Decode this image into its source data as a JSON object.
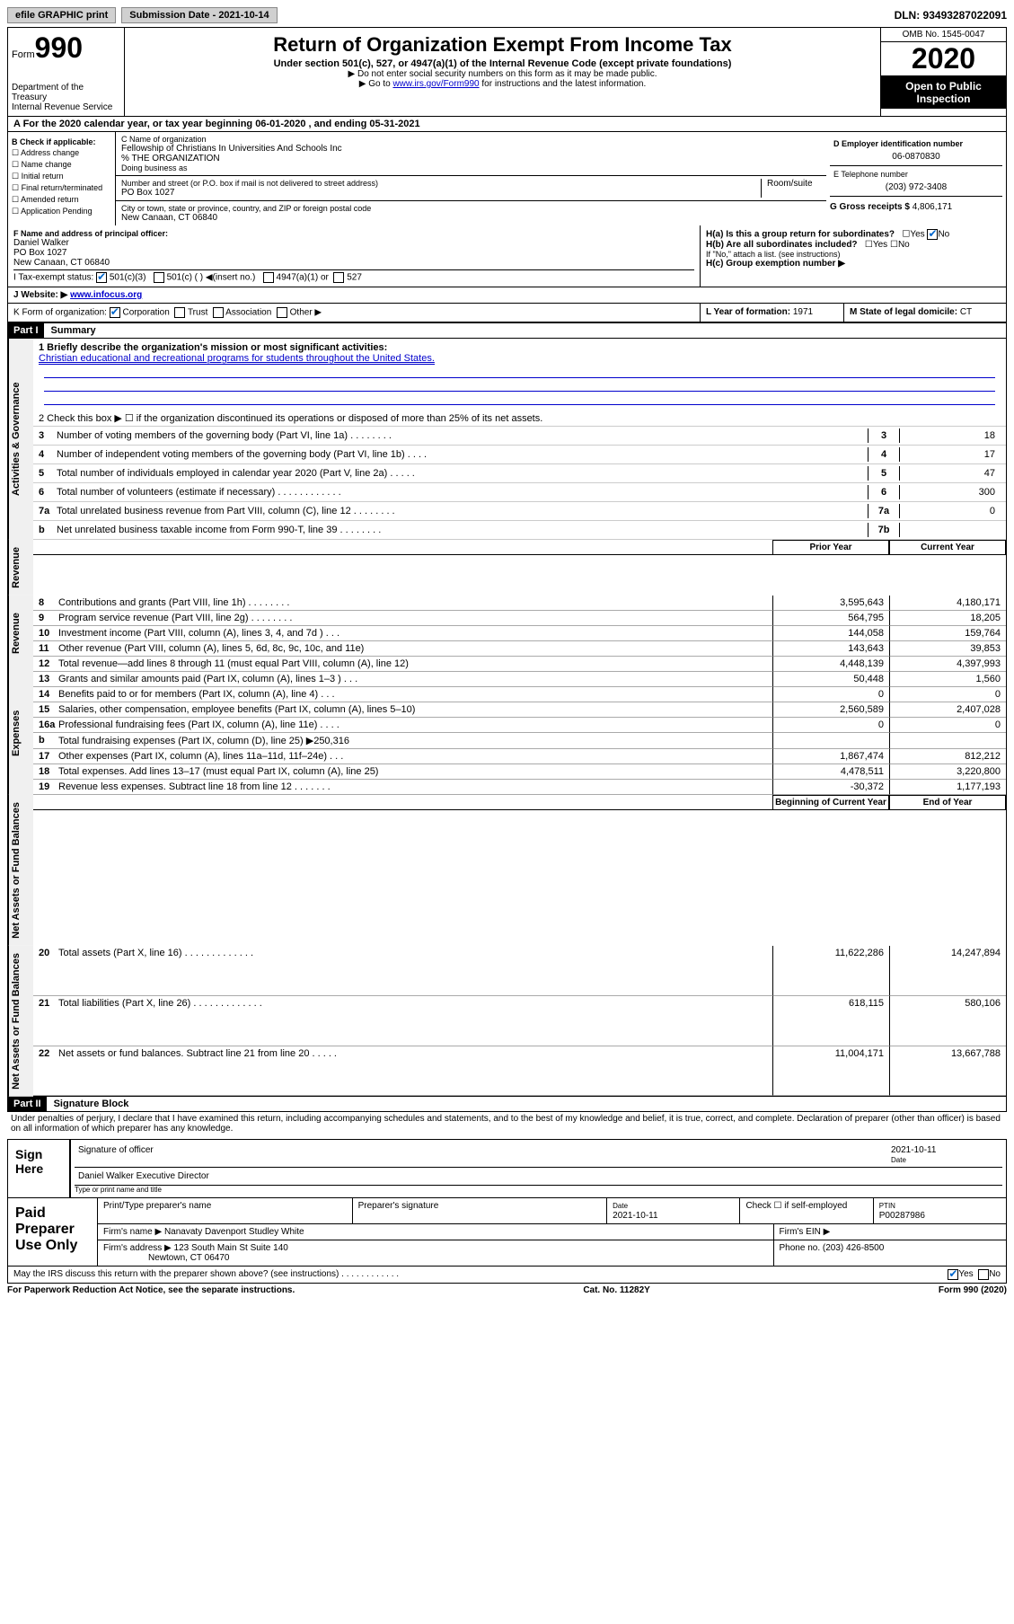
{
  "topbar": {
    "efile": "efile GRAPHIC print",
    "submission": "Submission Date - 2021-10-14",
    "dln": "DLN: 93493287022091"
  },
  "header": {
    "form": "Form",
    "formnum": "990",
    "dept": "Department of the Treasury\nInternal Revenue Service",
    "title": "Return of Organization Exempt From Income Tax",
    "subtitle": "Under section 501(c), 527, or 4947(a)(1) of the Internal Revenue Code (except private foundations)",
    "inst1": "▶ Do not enter social security numbers on this form as it may be made public.",
    "inst2_pre": "▶ Go to ",
    "inst2_link": "www.irs.gov/Form990",
    "inst2_post": " for instructions and the latest information.",
    "omb": "OMB No. 1545-0047",
    "year": "2020",
    "inspection": "Open to Public Inspection"
  },
  "rowA": "A For the 2020 calendar year, or tax year beginning 06-01-2020   , and ending 05-31-2021",
  "boxB": {
    "label": "B Check if applicable:",
    "items": [
      "Address change",
      "Name change",
      "Initial return",
      "Final return/terminated",
      "Amended return",
      "Application Pending"
    ]
  },
  "boxC": {
    "label": "C Name of organization",
    "name": "Fellowship of Christians In Universities And Schools Inc",
    "care": "% THE ORGANIZATION",
    "dba_label": "Doing business as",
    "addr_label": "Number and street (or P.O. box if mail is not delivered to street address)",
    "room": "Room/suite",
    "addr": "PO Box 1027",
    "city_label": "City or town, state or province, country, and ZIP or foreign postal code",
    "city": "New Canaan, CT  06840"
  },
  "boxD": {
    "label": "D Employer identification number",
    "val": "06-0870830"
  },
  "boxE": {
    "label": "E Telephone number",
    "val": "(203) 972-3408"
  },
  "boxG": {
    "label": "G Gross receipts $",
    "val": "4,806,171"
  },
  "boxF": {
    "label": "F Name and address of principal officer:",
    "name": "Daniel Walker",
    "addr": "PO Box 1027",
    "city": "New Canaan, CT  06840"
  },
  "boxH": {
    "ha": "H(a)  Is this a group return for subordinates?",
    "hb": "H(b)  Are all subordinates included?",
    "hb_note": "If \"No,\" attach a list. (see instructions)",
    "hc": "H(c)  Group exemption number ▶",
    "yes": "Yes",
    "no": "No"
  },
  "taxstatus": {
    "label": "I    Tax-exempt status:",
    "c3": "501(c)(3)",
    "c": "501(c) (   ) ◀(insert no.)",
    "a1": "4947(a)(1) or",
    "s527": "527"
  },
  "website": {
    "label": "J   Website: ▶",
    "val": "www.infocus.org"
  },
  "boxK": {
    "label": "K Form of organization:",
    "corp": "Corporation",
    "trust": "Trust",
    "assoc": "Association",
    "other": "Other ▶"
  },
  "boxL": {
    "label": "L Year of formation:",
    "val": "1971"
  },
  "boxM": {
    "label": "M State of legal domicile:",
    "val": "CT"
  },
  "part1": {
    "header": "Part I",
    "title": "Summary",
    "q1_label": "1   Briefly describe the organization's mission or most significant activities:",
    "q1_val": "Christian educational and recreational programs for students throughout the United States.",
    "q2": "2    Check this box ▶ ☐  if the organization discontinued its operations or disposed of more than 25% of its net assets.",
    "gov_label": "Activities & Governance",
    "rev_label": "Revenue",
    "exp_label": "Expenses",
    "nab_label": "Net Assets or Fund Balances",
    "lines_simple": [
      {
        "n": "3",
        "t": "Number of voting members of the governing body (Part VI, line 1a)   .    .    .    .    .    .    .    .",
        "box": "3",
        "v": "18"
      },
      {
        "n": "4",
        "t": "Number of independent voting members of the governing body (Part VI, line 1b)   .    .    .    .",
        "box": "4",
        "v": "17"
      },
      {
        "n": "5",
        "t": "Total number of individuals employed in calendar year 2020 (Part V, line 2a)   .    .    .    .    .",
        "box": "5",
        "v": "47"
      },
      {
        "n": "6",
        "t": "Total number of volunteers (estimate if necessary)   .    .    .    .    .    .    .    .    .    .    .    .",
        "box": "6",
        "v": "300"
      },
      {
        "n": "7a",
        "t": "Total unrelated business revenue from Part VIII, column (C), line 12   .    .    .    .    .    .    .    .",
        "box": "7a",
        "v": "0"
      },
      {
        "n": "b",
        "t": "Net unrelated business taxable income from Form 990-T, line 39   .    .    .    .    .    .    .    .",
        "box": "7b",
        "v": ""
      }
    ],
    "col_prior": "Prior Year",
    "col_current": "Current Year",
    "revenue": [
      {
        "n": "8",
        "t": "Contributions and grants (Part VIII, line 1h)   .    .    .    .    .    .    .    .",
        "p": "3,595,643",
        "c": "4,180,171"
      },
      {
        "n": "9",
        "t": "Program service revenue (Part VIII, line 2g)   .    .    .    .    .    .    .    .",
        "p": "564,795",
        "c": "18,205"
      },
      {
        "n": "10",
        "t": "Investment income (Part VIII, column (A), lines 3, 4, and 7d )   .    .    .",
        "p": "144,058",
        "c": "159,764"
      },
      {
        "n": "11",
        "t": "Other revenue (Part VIII, column (A), lines 5, 6d, 8c, 9c, 10c, and 11e)",
        "p": "143,643",
        "c": "39,853"
      },
      {
        "n": "12",
        "t": "Total revenue—add lines 8 through 11 (must equal Part VIII, column (A), line 12)",
        "p": "4,448,139",
        "c": "4,397,993"
      }
    ],
    "expenses": [
      {
        "n": "13",
        "t": "Grants and similar amounts paid (Part IX, column (A), lines 1–3 )   .    .    .",
        "p": "50,448",
        "c": "1,560"
      },
      {
        "n": "14",
        "t": "Benefits paid to or for members (Part IX, column (A), line 4)   .    .    .",
        "p": "0",
        "c": "0"
      },
      {
        "n": "15",
        "t": "Salaries, other compensation, employee benefits (Part IX, column (A), lines 5–10)",
        "p": "2,560,589",
        "c": "2,407,028"
      },
      {
        "n": "16a",
        "t": "Professional fundraising fees (Part IX, column (A), line 11e)   .    .    .    .",
        "p": "0",
        "c": "0"
      },
      {
        "n": "b",
        "t": "Total fundraising expenses (Part IX, column (D), line 25) ▶250,316",
        "p": "",
        "c": ""
      },
      {
        "n": "17",
        "t": "Other expenses (Part IX, column (A), lines 11a–11d, 11f–24e)   .    .    .",
        "p": "1,867,474",
        "c": "812,212"
      },
      {
        "n": "18",
        "t": "Total expenses. Add lines 13–17 (must equal Part IX, column (A), line 25)",
        "p": "4,478,511",
        "c": "3,220,800"
      },
      {
        "n": "19",
        "t": "Revenue less expenses. Subtract line 18 from line 12   .    .    .    .    .    .    .",
        "p": "-30,372",
        "c": "1,177,193"
      }
    ],
    "col_begin": "Beginning of Current Year",
    "col_end": "End of Year",
    "netassets": [
      {
        "n": "20",
        "t": "Total assets (Part X, line 16)   .    .    .    .    .    .    .    .    .    .    .    .    .",
        "p": "11,622,286",
        "c": "14,247,894"
      },
      {
        "n": "21",
        "t": "Total liabilities (Part X, line 26)   .    .    .    .    .    .    .    .    .    .    .    .    .",
        "p": "618,115",
        "c": "580,106"
      },
      {
        "n": "22",
        "t": "Net assets or fund balances. Subtract line 21 from line 20   .    .    .    .    .",
        "p": "11,004,171",
        "c": "13,667,788"
      }
    ]
  },
  "part2": {
    "header": "Part II",
    "title": "Signature Block",
    "perjury": "Under penalties of perjury, I declare that I have examined this return, including accompanying schedules and statements, and to the best of my knowledge and belief, it is true, correct, and complete. Declaration of preparer (other than officer) is based on all information of which preparer has any knowledge.",
    "sign_here": "Sign Here",
    "sig_officer": "Signature of officer",
    "sig_date": "2021-10-11",
    "date_label": "Date",
    "officer_name": "Daniel Walker  Executive Director",
    "type_name": "Type or print name and title",
    "paid_prep": "Paid Preparer Use Only",
    "prep_name_label": "Print/Type preparer's name",
    "prep_sig_label": "Preparer's signature",
    "prep_date": "2021-10-11",
    "check_self": "Check ☐ if self-employed",
    "ptin_label": "PTIN",
    "ptin": "P00287986",
    "firm_name_label": "Firm's name    ▶",
    "firm_name": "Nanavaty Davenport Studley White",
    "firm_ein_label": "Firm's EIN ▶",
    "firm_addr_label": "Firm's address ▶",
    "firm_addr": "123 South Main St Suite 140",
    "firm_city": "Newtown, CT  06470",
    "phone_label": "Phone no.",
    "phone": "(203) 426-8500",
    "discuss": "May the IRS discuss this return with the preparer shown above? (see instructions)   .    .    .    .    .    .    .    .    .    .    .    .",
    "yes": "Yes",
    "no": "No"
  },
  "footer": {
    "left": "For Paperwork Reduction Act Notice, see the separate instructions.",
    "center": "Cat. No. 11282Y",
    "right": "Form 990 (2020)"
  }
}
